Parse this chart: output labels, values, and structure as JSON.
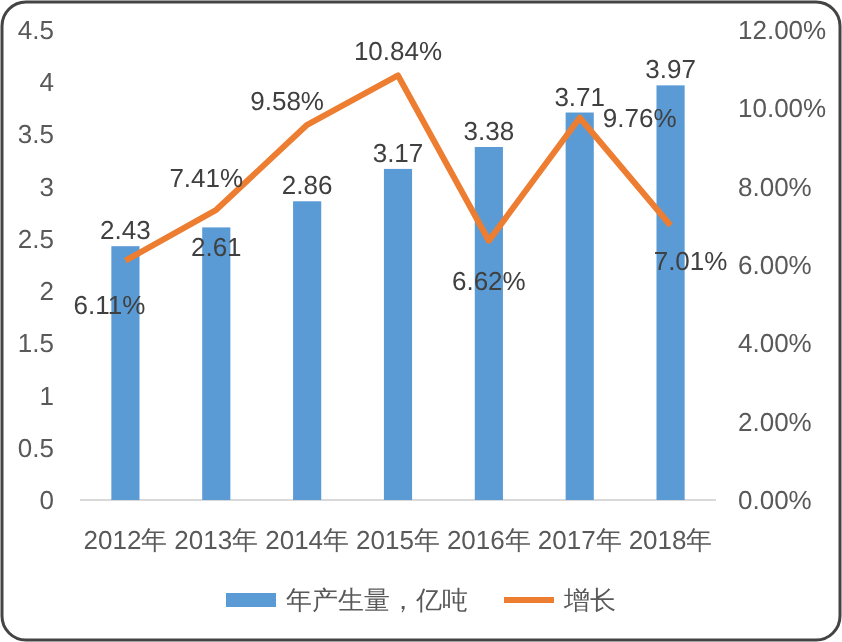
{
  "chart_data": {
    "type": "bar",
    "categories": [
      "2012年",
      "2013年",
      "2014年",
      "2015年",
      "2016年",
      "2017年",
      "2018年"
    ],
    "series": [
      {
        "name": "年产生量，亿吨",
        "color": "#5b9bd5",
        "values": [
          2.43,
          2.61,
          2.86,
          3.17,
          3.38,
          3.71,
          3.97
        ],
        "value_labels": [
          "2.43",
          "2.61",
          "2.86",
          "3.17",
          "3.38",
          "3.71",
          "3.97"
        ]
      },
      {
        "name": "增长",
        "type": "line",
        "axis": "y2",
        "color": "#ed7d31",
        "values": [
          6.11,
          7.41,
          9.58,
          10.84,
          6.62,
          9.76,
          7.01
        ],
        "value_labels": [
          "6.11%",
          "7.41%",
          "9.58%",
          "10.84%",
          "6.62%",
          "9.76%",
          "7.01%"
        ]
      }
    ],
    "ylim": [
      0,
      4.5
    ],
    "yticks": [
      0,
      0.5,
      1,
      1.5,
      2,
      2.5,
      3,
      3.5,
      4,
      4.5
    ],
    "y2lim": [
      0,
      12
    ],
    "y2ticks": [
      {
        "value": 0,
        "label": "0.00%"
      },
      {
        "value": 2,
        "label": "2.00%"
      },
      {
        "value": 4,
        "label": "4.00%"
      },
      {
        "value": 6,
        "label": "6.00%"
      },
      {
        "value": 8,
        "label": "8.00%"
      },
      {
        "value": 10,
        "label": "10.00%"
      },
      {
        "value": 12,
        "label": "12.00%"
      }
    ],
    "grid": false,
    "legend": "bottom",
    "marker": "none",
    "line_style": "solid"
  }
}
